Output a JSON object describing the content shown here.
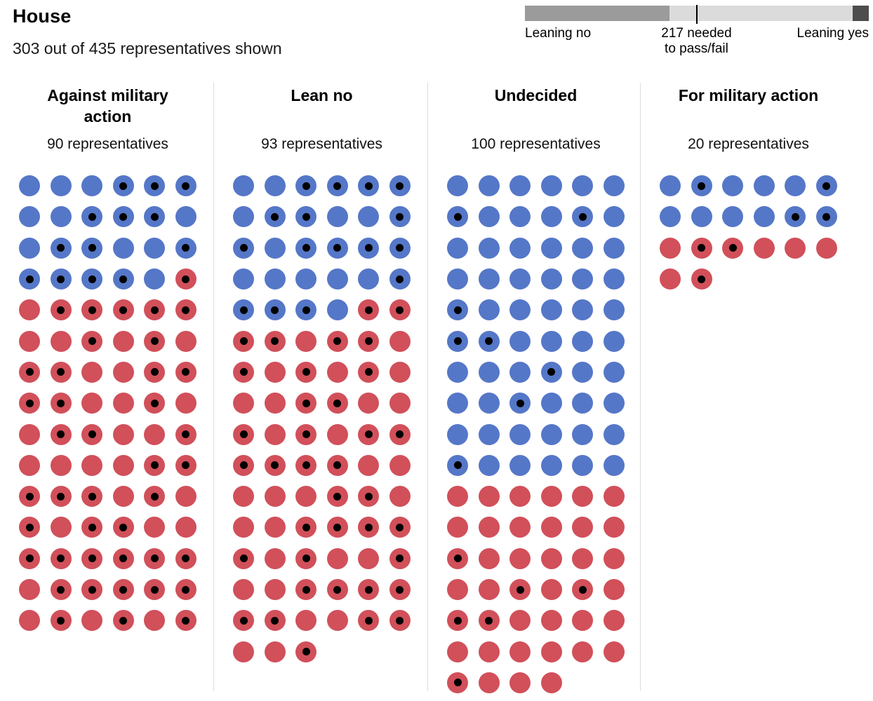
{
  "header": {
    "title": "House",
    "subtitle": "303 out of 435 representatives shown"
  },
  "legend": {
    "left_label": "Leaning no",
    "threshold_label_line1": "217 needed",
    "threshold_label_line2": "to pass/fail",
    "right_label": "Leaning yes",
    "tick_fraction": 0.4989,
    "segments": [
      {
        "name": "leaning-no",
        "fraction": 0.4207,
        "color": "#9b9b9b"
      },
      {
        "name": "undecided",
        "fraction": 0.5333,
        "color": "#dbdbdb"
      },
      {
        "name": "leaning-yes",
        "fraction": 0.046,
        "color": "#4d4d4d"
      }
    ]
  },
  "dot_colors": {
    "dem_blue": "#5577c8",
    "rep_red": "#d1505a",
    "marker_black": "#000000"
  },
  "encoding": {
    "b": "blue dot",
    "B": "blue dot with black center marker",
    "r": "red dot",
    "R": "red dot with black center marker"
  },
  "groups": [
    {
      "id": "against",
      "title": "Against military action",
      "count": 90,
      "count_label": "90 representatives",
      "rows": [
        "bbbBBB",
        "bbBBBb",
        "bBBbbB",
        "BBBBbR",
        "rRRRRR",
        "rrRrRr",
        "RRrrRR",
        "RRrrRr",
        "rRRrrR",
        "rrrrRR",
        "RRRrRr",
        "RrRRrr",
        "RRRRRR",
        "rRRRRR",
        "rRrRrR"
      ]
    },
    {
      "id": "lean-no",
      "title": "Lean no",
      "count": 93,
      "count_label": "93 representatives",
      "rows": [
        "bbBBBB",
        "bBBbbB",
        "BbBBBB",
        "bbbbbB",
        "BBBbRR",
        "RRrRRr",
        "RrRrRr",
        "rrRRrr",
        "RrRrRR",
        "RRRRrr",
        "rrrRRr",
        "rrRRRR",
        "RrRrrR",
        "rrRRRR",
        "RRrrRR",
        "rrR"
      ]
    },
    {
      "id": "undecided",
      "title": "Undecided",
      "count": 100,
      "count_label": "100 representatives",
      "rows": [
        "bbbbbb",
        "BbbbBb",
        "bbbbbb",
        "bbbbbb",
        "Bbbbbb",
        "BBbbbb",
        "bbbBbb",
        "bbBbbb",
        "bbbbbb",
        "Bbbbbb",
        "rrrrrr",
        "rrrrrr",
        "Rrrrrr",
        "rrRrRr",
        "RRrrrr",
        "rrrrrr",
        "Rrrr"
      ]
    },
    {
      "id": "for",
      "title": "For military action",
      "count": 20,
      "count_label": "20 representatives",
      "rows": [
        "bBbbbB",
        "bbbbBB",
        "rRRrrr",
        "rR"
      ]
    }
  ],
  "chart_data": {
    "type": "scatter",
    "variant": "unit-dot-matrix",
    "title": "House",
    "subtitle": "303 out of 435 representatives shown",
    "total_seats": 435,
    "shown": 303,
    "threshold": {
      "value": 217,
      "label": "217 needed to pass/fail"
    },
    "categories": [
      "Against military action",
      "Lean no",
      "Undecided",
      "For military action"
    ],
    "values": [
      90,
      93,
      100,
      20
    ],
    "series": [
      {
        "name": "blue dots (Democrats)",
        "values": [
          23,
          28,
          60,
          12
        ]
      },
      {
        "name": "red dots (Republicans)",
        "values": [
          67,
          65,
          40,
          8
        ]
      },
      {
        "name": "dots with black center marker",
        "values": [
          54,
          53,
          14,
          7
        ]
      }
    ],
    "gauge": {
      "leaning_no_total": 183,
      "leaning_yes_total": 20,
      "needed_to_pass": 217
    },
    "legend_position": "top-right",
    "grid": "off",
    "dots_per_row": 6
  }
}
